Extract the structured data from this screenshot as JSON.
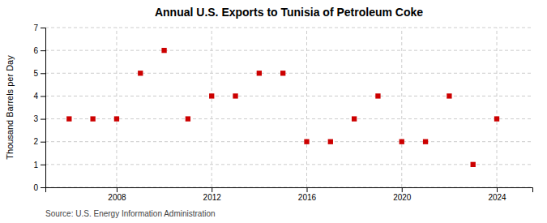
{
  "chart_data": {
    "type": "scatter",
    "title": "Annual U.S. Exports to Tunisia of Petroleum Coke",
    "ylabel": "Thousand Barrels per Day",
    "source": "Source: U.S. Energy Information Administration",
    "x": [
      2006,
      2007,
      2008,
      2009,
      2010,
      2011,
      2012,
      2013,
      2014,
      2015,
      2016,
      2017,
      2018,
      2019,
      2020,
      2021,
      2022,
      2023,
      2024
    ],
    "values": [
      3,
      3,
      3,
      5,
      6,
      3,
      4,
      4,
      5,
      5,
      2,
      2,
      3,
      4,
      2,
      2,
      4,
      1,
      3
    ],
    "color": "#cc0000",
    "marker": "square",
    "xlim": [
      2005.0,
      2025.5
    ],
    "ylim": [
      0,
      7
    ],
    "xticks": [
      2008,
      2012,
      2016,
      2020,
      2024
    ],
    "yticks": [
      0,
      1,
      2,
      3,
      4,
      5,
      6,
      7
    ],
    "grid": true
  }
}
